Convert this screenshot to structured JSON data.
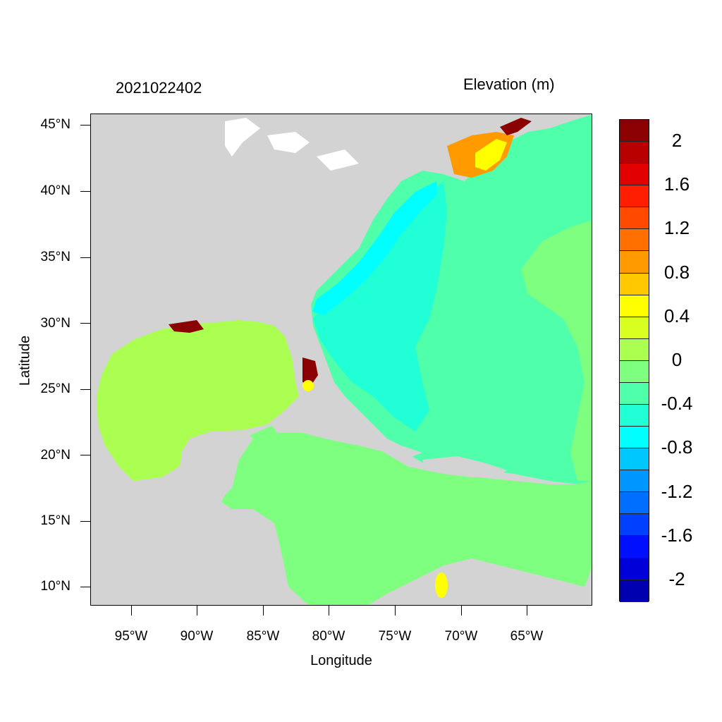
{
  "titles": {
    "left": "2021022402",
    "right": "Elevation (m)"
  },
  "axes": {
    "xlabel": "Longitude",
    "ylabel": "Latitude",
    "lat_ticks": [
      "45°N",
      "40°N",
      "35°N",
      "30°N",
      "25°N",
      "20°N",
      "15°N",
      "10°N"
    ],
    "lon_ticks": [
      "95°W",
      "90°W",
      "85°W",
      "80°W",
      "75°W",
      "70°W",
      "65°W"
    ]
  },
  "colorbar": {
    "colors": [
      "#8b0000",
      "#b80000",
      "#e30000",
      "#ff1e00",
      "#ff4a00",
      "#ff7000",
      "#ff9a00",
      "#ffc800",
      "#ffff00",
      "#d8ff20",
      "#aaff50",
      "#7fff80",
      "#50ffaa",
      "#20ffd6",
      "#00ffff",
      "#00c8ff",
      "#0096ff",
      "#006eff",
      "#0040ff",
      "#0010ff",
      "#0000d8",
      "#0000b0"
    ],
    "labels": [
      "2",
      "1.6",
      "1.2",
      "0.8",
      "0.4",
      "0",
      "-0.4",
      "-0.8",
      "-1.2",
      "-1.6",
      "-2"
    ]
  },
  "palette": {
    "land": "#d3d3d3",
    "gulf": "#aaff50",
    "caribbean": "#7fff80",
    "atlantic": "#50ffaa",
    "shelf": "#20ffd6",
    "coastal": "#00ffff",
    "surge_high": "#8b0000",
    "surge_orange": "#ff9a00",
    "surge_yellow": "#ffff00"
  }
}
